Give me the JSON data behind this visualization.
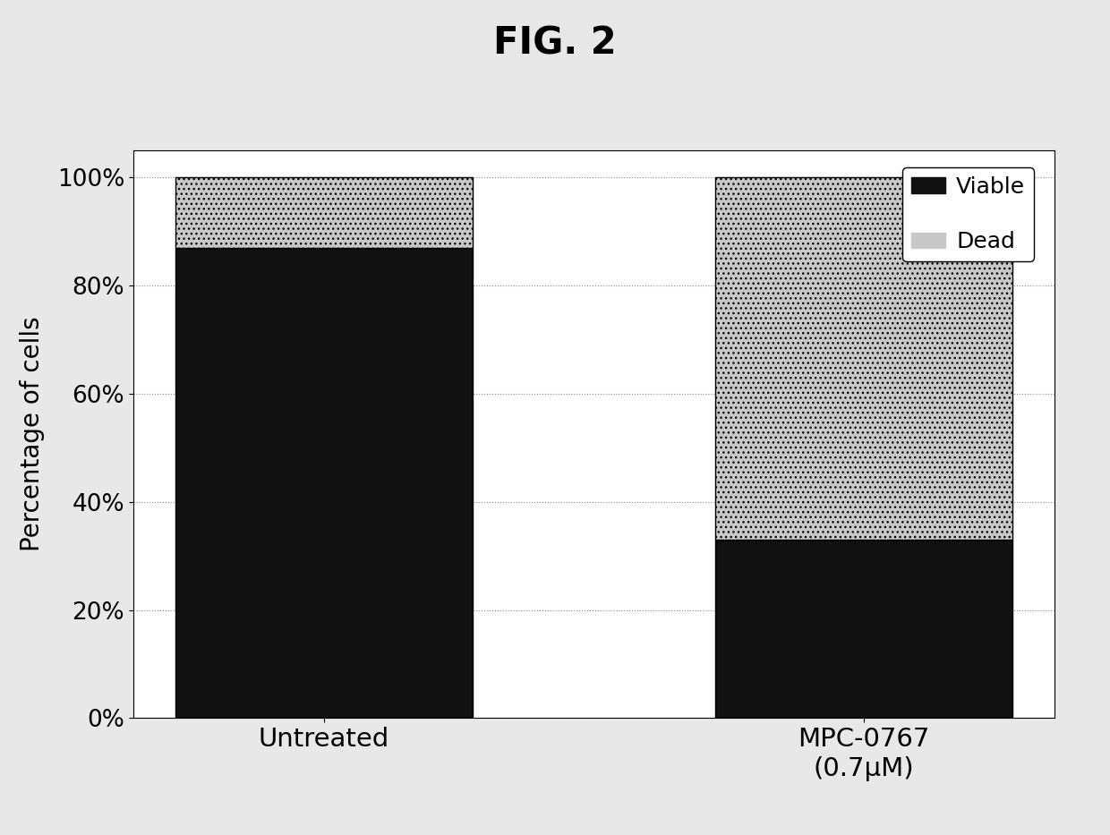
{
  "title": "FIG. 2",
  "categories": [
    "Untreated",
    "MPC-0767\n(0.7μM)"
  ],
  "viable": [
    0.87,
    0.33
  ],
  "dead": [
    0.13,
    0.67
  ],
  "viable_color": "#111111",
  "dead_color": "#c8c8c8",
  "ylabel": "Percentage of cells",
  "yticks": [
    0.0,
    0.2,
    0.4,
    0.6,
    0.8,
    1.0
  ],
  "ytick_labels": [
    "0%",
    "20%",
    "40%",
    "60%",
    "80%",
    "100%"
  ],
  "ylim": [
    0,
    1.05
  ],
  "bar_width": 0.55,
  "legend_labels": [
    "Viable",
    "Dead"
  ],
  "title_fontsize": 30,
  "axis_fontsize": 20,
  "tick_fontsize": 19,
  "legend_fontsize": 18,
  "figure_facecolor": "#e8e8e8"
}
